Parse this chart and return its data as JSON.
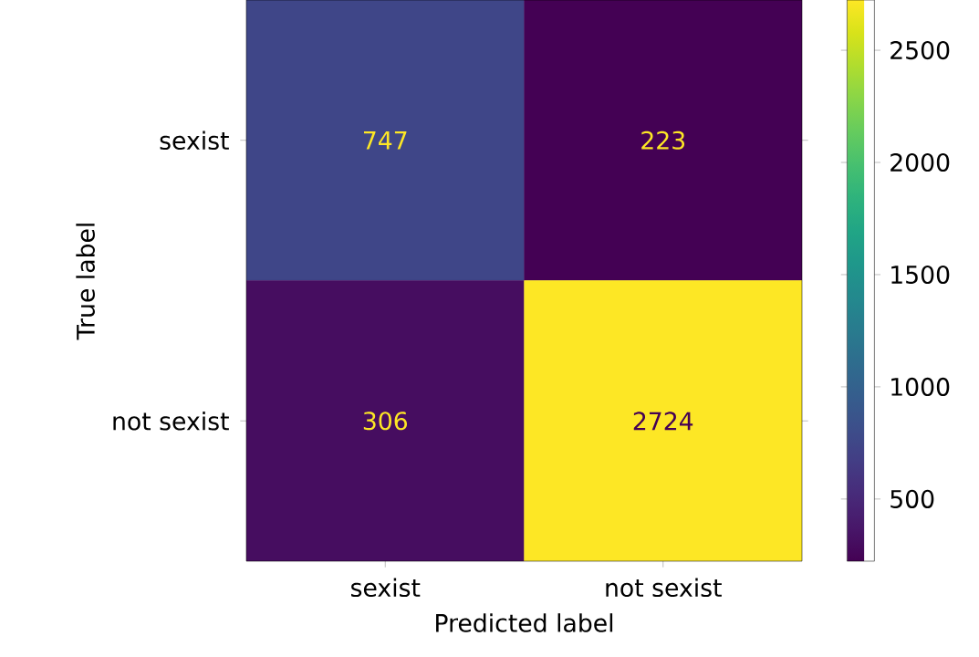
{
  "chart_data": {
    "type": "heatmap",
    "xlabel": "Predicted label",
    "ylabel": "True label",
    "categories": [
      "sexist",
      "not sexist"
    ],
    "y_categories": [
      "sexist",
      "not sexist"
    ],
    "cells": [
      [
        747,
        223
      ],
      [
        306,
        2724
      ]
    ],
    "data_labels": true,
    "clim": [
      223,
      2724
    ],
    "cticks": [
      500,
      1000,
      1500,
      2000,
      2500
    ]
  }
}
